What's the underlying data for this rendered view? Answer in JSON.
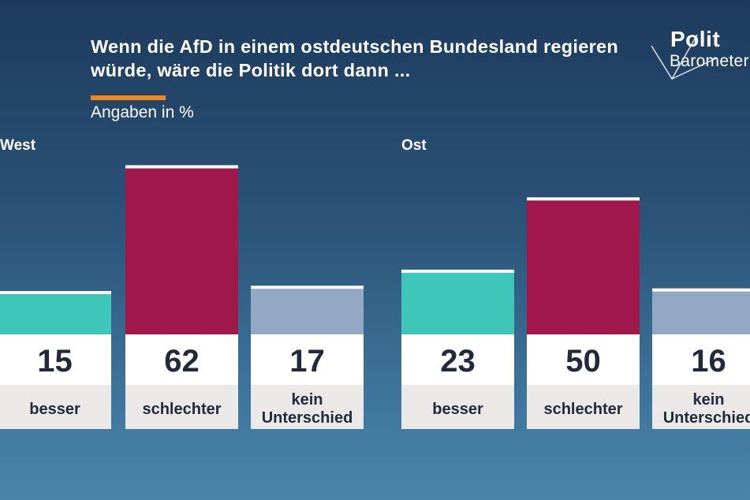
{
  "title": "Wenn die AfD in einem ostdeutschen Bundesland regieren würde, wäre die Politik dort dann ...",
  "subtitle": "Angaben in %",
  "logo": {
    "line1": "Polit",
    "line2": "Barometer"
  },
  "colors": {
    "accent": "#f08a1c",
    "besser": "#3ec6b8",
    "schlechter": "#a0174b",
    "kein_unterschied": "#93a9c3",
    "value_box": "#ffffff",
    "label_box": "#ebe9e8",
    "text_dark": "#22293a"
  },
  "chart_data": [
    {
      "type": "bar",
      "panel": "West",
      "categories": [
        "besser",
        "schlechter",
        "kein Unterschied"
      ],
      "values": [
        15,
        62,
        17
      ],
      "unit": "%"
    },
    {
      "type": "bar",
      "panel": "Ost",
      "categories": [
        "besser",
        "schlechter",
        "kein Unterschied"
      ],
      "values": [
        23,
        50,
        16
      ],
      "unit": "%"
    }
  ]
}
